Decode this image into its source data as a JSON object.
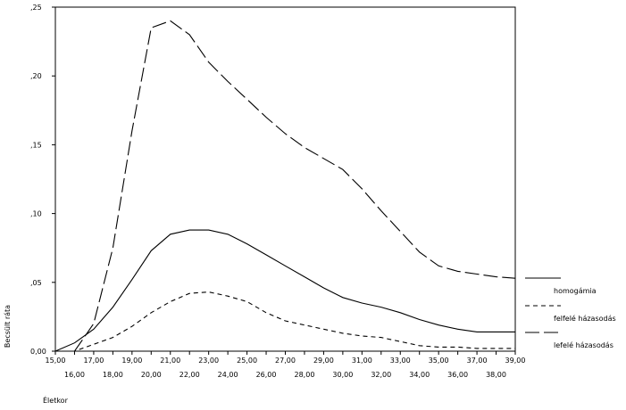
{
  "chart_data": {
    "type": "line",
    "xlabel": "Életkor",
    "ylabel": "Becsült ráta",
    "xlim": [
      15,
      39
    ],
    "ylim": [
      0,
      0.25
    ],
    "x_tick_labels": [
      "15,00",
      "16,00",
      "17,00",
      "18,00",
      "19,00",
      "20,00",
      "21,00",
      "22,00",
      "23,00",
      "24,00",
      "25,00",
      "26,00",
      "27,00",
      "28,00",
      "29,00",
      "30,00",
      "31,00",
      "32,00",
      "33,00",
      "34,00",
      "35,00",
      "36,00",
      "37,00",
      "38,00",
      "39,00"
    ],
    "y_ticks": [
      0,
      0.05,
      0.1,
      0.15,
      0.2,
      0.25
    ],
    "y_tick_labels": [
      "0,00",
      ",05",
      ",10",
      ",15",
      ",20",
      ",25"
    ],
    "x": [
      15,
      16,
      17,
      18,
      19,
      20,
      21,
      22,
      23,
      24,
      25,
      26,
      27,
      28,
      29,
      30,
      31,
      32,
      33,
      34,
      35,
      36,
      37,
      38,
      39
    ],
    "series": [
      {
        "name": "homogámia",
        "style": "solid",
        "values": [
          0.0,
          0.006,
          0.016,
          0.032,
          0.052,
          0.073,
          0.085,
          0.088,
          0.088,
          0.085,
          0.078,
          0.07,
          0.062,
          0.054,
          0.046,
          0.039,
          0.035,
          0.032,
          0.028,
          0.023,
          0.019,
          0.016,
          0.014,
          0.014,
          0.014
        ]
      },
      {
        "name": "felfelé házasodás",
        "style": "short-dash",
        "values": [
          0.0,
          0.0,
          0.005,
          0.01,
          0.018,
          0.028,
          0.036,
          0.042,
          0.043,
          0.04,
          0.036,
          0.028,
          0.022,
          0.019,
          0.016,
          0.013,
          0.011,
          0.01,
          0.007,
          0.004,
          0.003,
          0.003,
          0.002,
          0.002,
          0.002
        ]
      },
      {
        "name": "lefelé házasodás",
        "style": "long-dash",
        "values": [
          0.0,
          0.0,
          0.02,
          0.075,
          0.16,
          0.235,
          0.24,
          0.23,
          0.21,
          0.196,
          0.183,
          0.17,
          0.158,
          0.148,
          0.14,
          0.132,
          0.118,
          0.102,
          0.087,
          0.072,
          0.062,
          0.058,
          0.056,
          0.054,
          0.053
        ]
      }
    ],
    "grid": false,
    "legend_position": "right"
  }
}
